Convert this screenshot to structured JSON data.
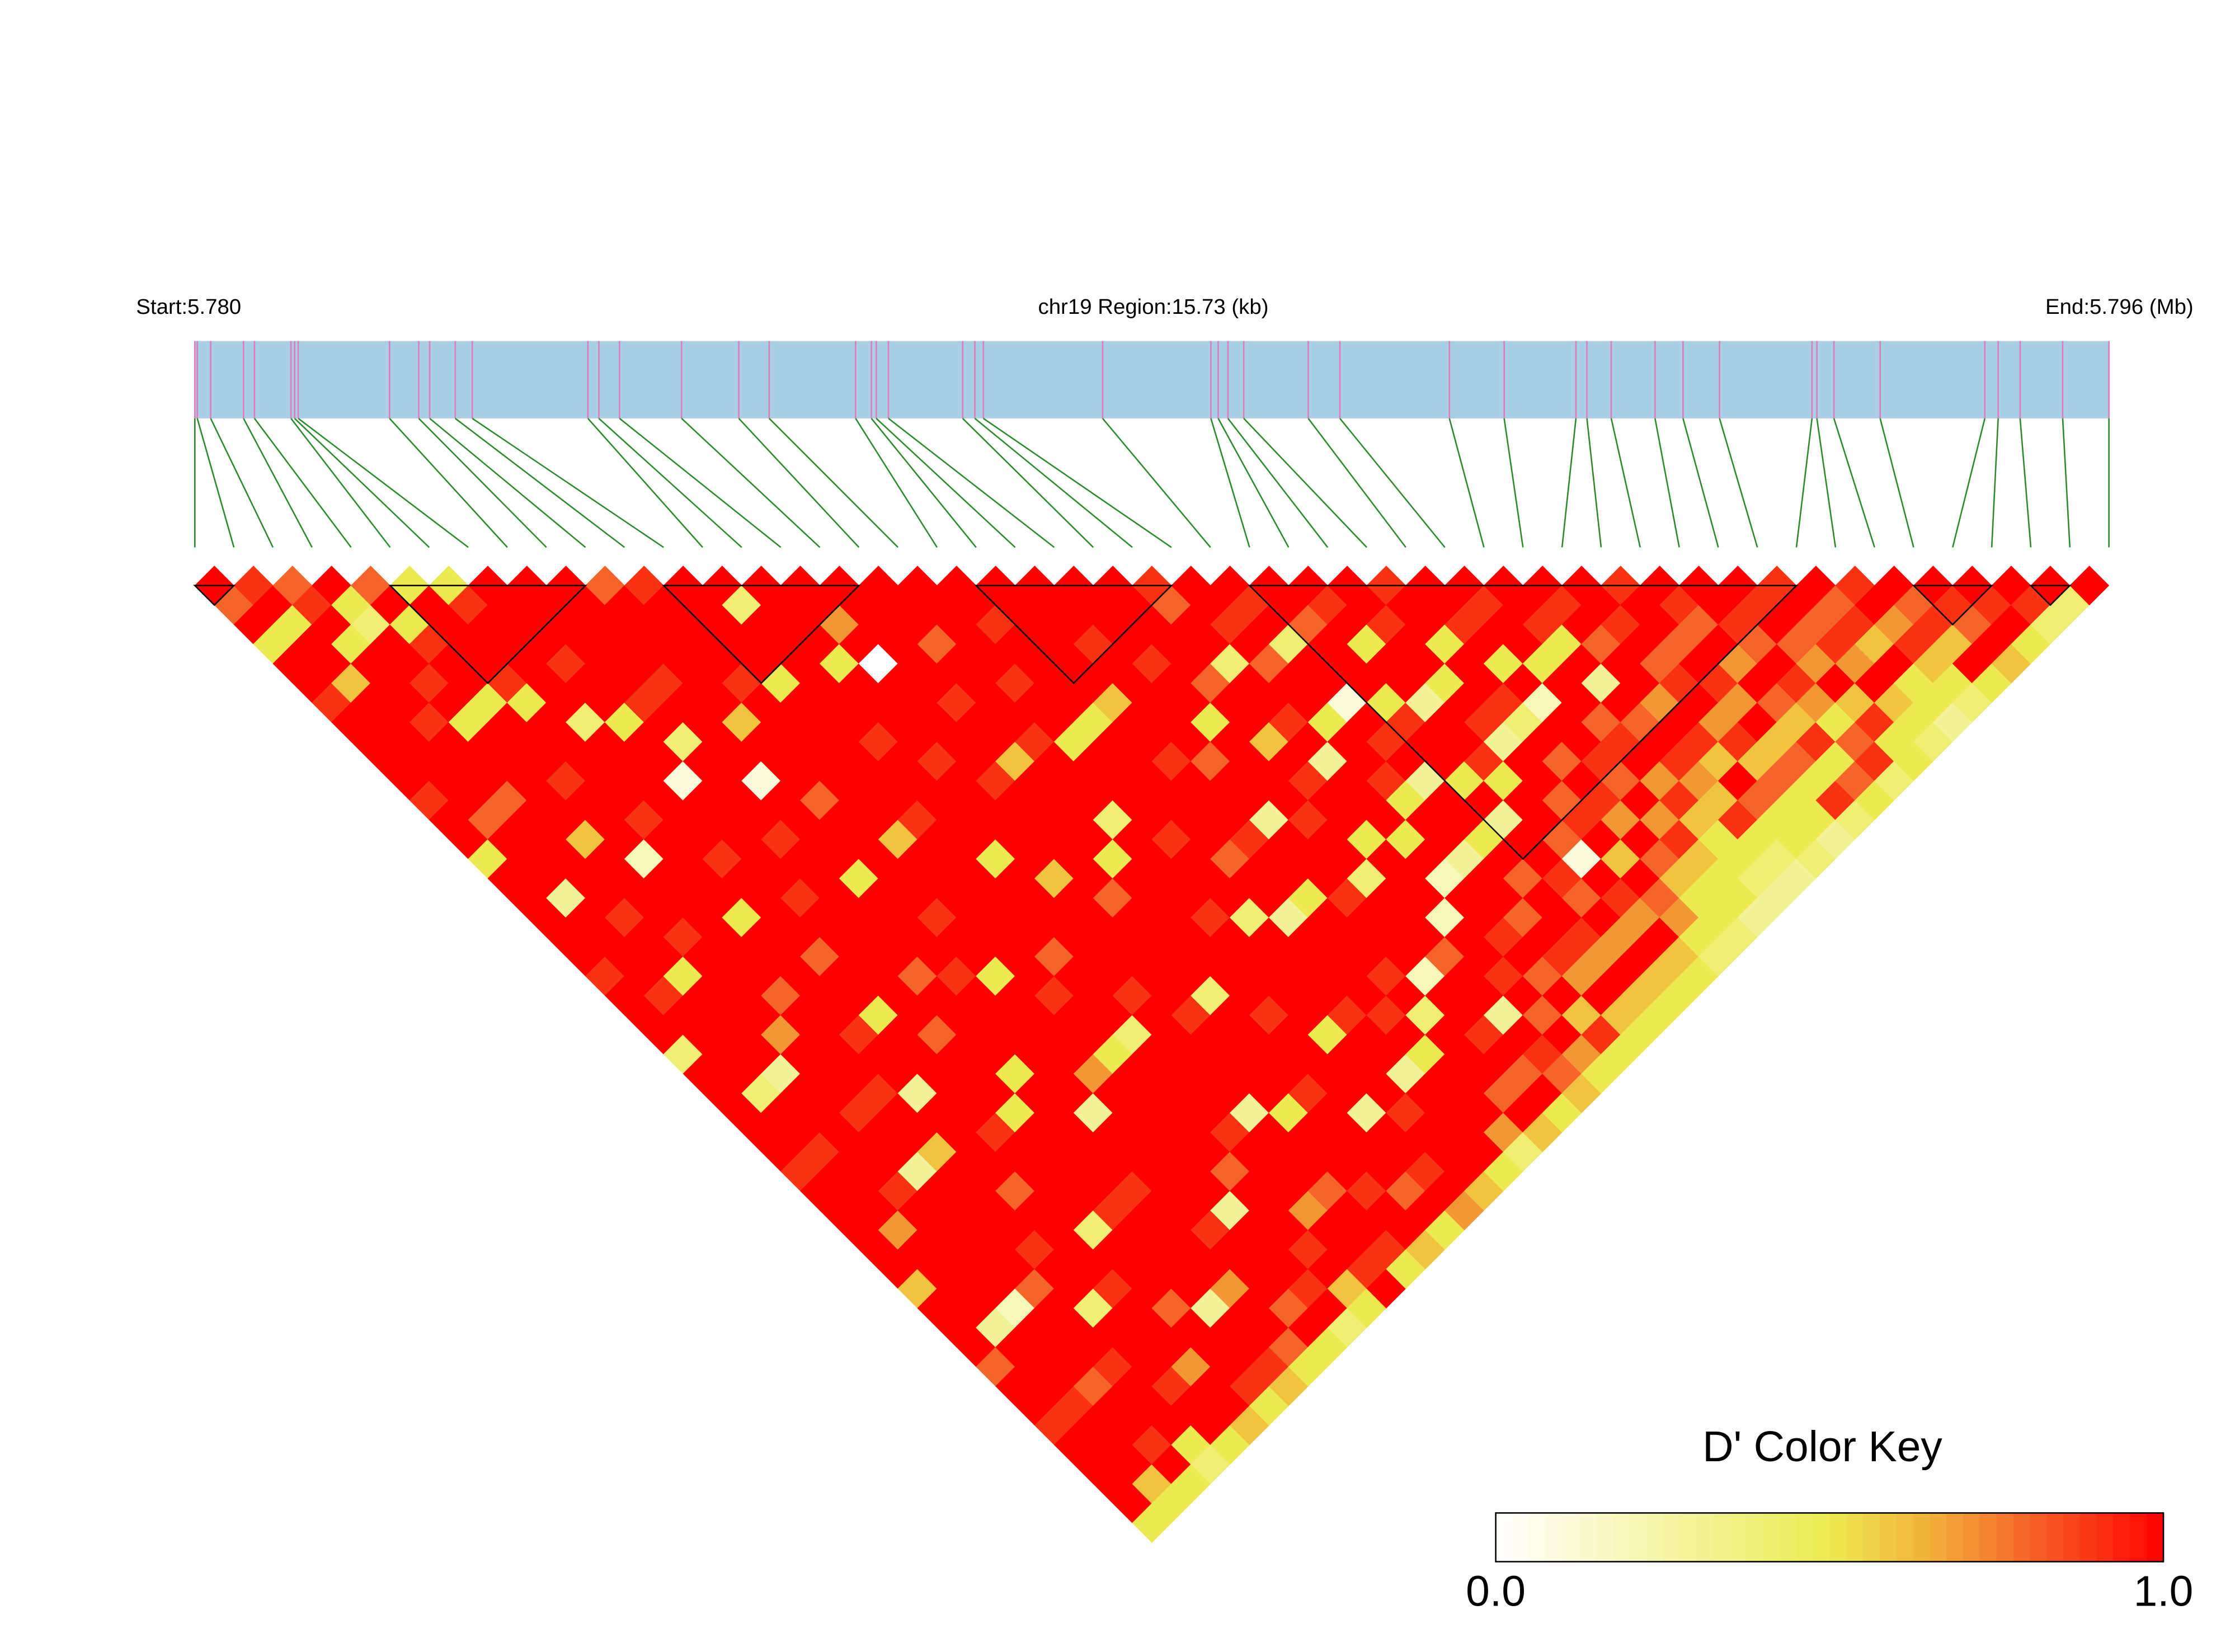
{
  "chart_data": {
    "type": "ld_heatmap",
    "start_label": "Start:5.780",
    "region_label": "chr19 Region:15.73 (kb)",
    "end_label": "End:5.796 (Mb)",
    "key_title": "D' Color Key",
    "key_ticks": [
      {
        "value": 0,
        "label": "0.0"
      },
      {
        "value": 1,
        "label": "1.0"
      }
    ],
    "color_stops": [
      {
        "value": 0,
        "color": "#ffffff"
      },
      {
        "value": 0.5,
        "color": "#ecea50"
      },
      {
        "value": 0.65,
        "color": "#f2b03a"
      },
      {
        "value": 0.8,
        "color": "#f56428"
      },
      {
        "value": 1,
        "color": "#ff0000"
      }
    ],
    "xlim": [
      0,
      15.73
    ],
    "snp_positions": [
      0.0,
      0.02,
      0.13,
      0.4,
      0.49,
      0.79,
      0.82,
      0.85,
      1.6,
      1.84,
      1.93,
      2.14,
      2.28,
      3.23,
      3.32,
      3.49,
      4.0,
      4.47,
      4.72,
      5.43,
      5.56,
      5.6,
      5.7,
      6.31,
      6.41,
      6.48,
      7.46,
      8.35,
      8.41,
      8.49,
      8.62,
      9.15,
      9.41,
      10.31,
      10.76,
      11.35,
      11.44,
      11.64,
      12.0,
      12.23,
      12.53,
      13.29,
      13.33,
      13.47,
      13.85,
      14.71,
      14.82,
      15.0,
      15.35,
      15.73
    ],
    "blocks": [
      [
        0,
        1
      ],
      [
        5,
        10
      ],
      [
        12,
        17
      ],
      [
        20,
        25
      ],
      [
        27,
        41
      ],
      [
        44,
        46
      ],
      [
        47,
        48
      ]
    ],
    "ld": [
      [
        1,
        0.8,
        1,
        0.5,
        1,
        1,
        0.9,
        1,
        1,
        1,
        1,
        0.9,
        1,
        1,
        0.5,
        1,
        1,
        1,
        1,
        1,
        0.9,
        1,
        1,
        1,
        0.4,
        1,
        1,
        1,
        1,
        1,
        0.9,
        1,
        1,
        1,
        1,
        1,
        0.6,
        1,
        1,
        1,
        0.8,
        1,
        1,
        0.9,
        1,
        1,
        1,
        1,
        0.5
      ],
      [
        0.9,
        1,
        0.5,
        1,
        1,
        0.6,
        1,
        1,
        1,
        1,
        1,
        1,
        0.8,
        1,
        1,
        1,
        0.3,
        1,
        1,
        1,
        1,
        0.9,
        1,
        1,
        1,
        1,
        0.4,
        1,
        1,
        0.9,
        1,
        1,
        1,
        0.7,
        1,
        1,
        1,
        1,
        0.3,
        1,
        1,
        1,
        0.9,
        1,
        1,
        1,
        0.6,
        0.5
      ],
      [
        0.8,
        0.9,
        1,
        0.5,
        1,
        1,
        1,
        0.9,
        1,
        1,
        1,
        0.8,
        1,
        1,
        1,
        1,
        1,
        0.9,
        1,
        1,
        0.5,
        1,
        1,
        1,
        1,
        0.3,
        1,
        1,
        1,
        1,
        1,
        0.9,
        1,
        1,
        1,
        1,
        1,
        0.2,
        1,
        1,
        1,
        0.8,
        1,
        1,
        0.9,
        1,
        0.5
      ],
      [
        1,
        0.5,
        0.4,
        1,
        1,
        0.9,
        1,
        0.5,
        1,
        1,
        1,
        1,
        1,
        0.6,
        1,
        1,
        1,
        1,
        0.9,
        1,
        1,
        1,
        1,
        0.7,
        1,
        1,
        1,
        0.9,
        1,
        1,
        0.3,
        1,
        1,
        1,
        1,
        1,
        0.8,
        1,
        1,
        1,
        0.9,
        1,
        1,
        1,
        0.5,
        0.4
      ],
      [
        0.8,
        1,
        0.5,
        0.9,
        1,
        1,
        0.5,
        1,
        1,
        1,
        0.9,
        1,
        1,
        1,
        0.2,
        1,
        1,
        1,
        1,
        1,
        1,
        0.8,
        1,
        1,
        1,
        1,
        0.9,
        1,
        1,
        0.6,
        1,
        1,
        1,
        1,
        0.9,
        1,
        1,
        0.4,
        1,
        1,
        1,
        0.9,
        1,
        1,
        0.5
      ],
      [
        0.5,
        1,
        1,
        1,
        1,
        0.9,
        0.5,
        1,
        1,
        1,
        1,
        1,
        0.9,
        1,
        1,
        1,
        1,
        0.5,
        1,
        1,
        1,
        1,
        1,
        0.9,
        1,
        1,
        0.3,
        1,
        1,
        1,
        1,
        0.8,
        1,
        1,
        1,
        1,
        0.9,
        1,
        1,
        1,
        0.7,
        1,
        1,
        0.6
      ],
      [
        0.5,
        0.9,
        1,
        1,
        1,
        1,
        1,
        0.4,
        1,
        1,
        1,
        1,
        1,
        1,
        0.9,
        1,
        1,
        1,
        1,
        0.8,
        1,
        1,
        0.5,
        1,
        1,
        1,
        1,
        1,
        0.9,
        1,
        1,
        1,
        1,
        0.4,
        1,
        1,
        1,
        0.8,
        1,
        1,
        1,
        0.9,
        0.5
      ],
      [
        1,
        1,
        1,
        1,
        0.9,
        1,
        1,
        0.5,
        1,
        1,
        0.1,
        1,
        1,
        1,
        1,
        1,
        0.9,
        1,
        1,
        1,
        1,
        1,
        1,
        0.8,
        1,
        1,
        1,
        0.5,
        1,
        1,
        1,
        1,
        0.9,
        1,
        1,
        1,
        1,
        0.3,
        1,
        1,
        0.9,
        0.6
      ],
      [
        1,
        1,
        1,
        1,
        1,
        1,
        0.9,
        1,
        0.4,
        1,
        1,
        1,
        1,
        0.9,
        1,
        1,
        1,
        1,
        1,
        1,
        0.8,
        1,
        1,
        1,
        1,
        0.5,
        1,
        1,
        1,
        1,
        1,
        0.9,
        1,
        1,
        1,
        1,
        0.7,
        1,
        1,
        0.8,
        0.5
      ],
      [
        1,
        1,
        1,
        1,
        1,
        0.9,
        1,
        1,
        1,
        1,
        0.1,
        1,
        1,
        1,
        1,
        0.5,
        1,
        1,
        1,
        1,
        0.9,
        1,
        1,
        1,
        1,
        1,
        1,
        0.3,
        1,
        1,
        1,
        1,
        1,
        0.9,
        1,
        1,
        1,
        0.8,
        1,
        0.5
      ],
      [
        0.8,
        1,
        1,
        1,
        1,
        1,
        1,
        0.6,
        1,
        1,
        1,
        0.8,
        1,
        1,
        1,
        1,
        1,
        0.9,
        1,
        1,
        0.5,
        1,
        1,
        1,
        1,
        0.7,
        1,
        1,
        1,
        1,
        1,
        1,
        0.3,
        1,
        1,
        1,
        0.9,
        1,
        0.4
      ],
      [
        0.9,
        1,
        1,
        1,
        1,
        0.9,
        1,
        1,
        1,
        1,
        1,
        1,
        1,
        0.6,
        1,
        1,
        1,
        1,
        1,
        1,
        1,
        0.9,
        1,
        1,
        0.5,
        1,
        1,
        1,
        1,
        1,
        0.8,
        1,
        1,
        1,
        0.9,
        1,
        0.6,
        0.5
      ],
      [
        1,
        1,
        1,
        1,
        1,
        0.5,
        1,
        1,
        1,
        1,
        1,
        1,
        0.9,
        1,
        1,
        1,
        1,
        1,
        1,
        0.8,
        1,
        1,
        1,
        0.4,
        1,
        1,
        1,
        1,
        0.9,
        1,
        1,
        1,
        0.7,
        1,
        1,
        0.9,
        1
      ],
      [
        1,
        0.4,
        1,
        1,
        1,
        1,
        1,
        1,
        0.9,
        1,
        1,
        1,
        1,
        1,
        0.5,
        1,
        1,
        1,
        1,
        1,
        1,
        0.9,
        1,
        1,
        1,
        1,
        1,
        0.3,
        1,
        1,
        1,
        0.8,
        1,
        1,
        0.9,
        0.5
      ],
      [
        1,
        1,
        1,
        1,
        0.5,
        1,
        1,
        1,
        1,
        0.9,
        1,
        1,
        1,
        1,
        1,
        0.6,
        1,
        1,
        1,
        1,
        1,
        1,
        0.9,
        1,
        1,
        1,
        1,
        0.5,
        1,
        1,
        1,
        0.9,
        1,
        1,
        0.6
      ],
      [
        1,
        1,
        0.7,
        1,
        0,
        1,
        1,
        1,
        1,
        1,
        0.9,
        1,
        1,
        1,
        1,
        1,
        0.8,
        1,
        1,
        1,
        1,
        0.4,
        1,
        1,
        1,
        1,
        0.9,
        1,
        1,
        1,
        1,
        0.8,
        1,
        0.5
      ],
      [
        1,
        1,
        1,
        1,
        1,
        1,
        0.9,
        1,
        1,
        0.6,
        1,
        1,
        1,
        1,
        0.5,
        1,
        1,
        1,
        1,
        1,
        1,
        1,
        0.9,
        1,
        1,
        1,
        1,
        0.3,
        1,
        1,
        0.9,
        1,
        0.7
      ],
      [
        1,
        1,
        1,
        0.8,
        1,
        1,
        1,
        1,
        0.9,
        1,
        1,
        1,
        0.4,
        1,
        1,
        1,
        1,
        0.9,
        1,
        1,
        1,
        1,
        1,
        0.5,
        1,
        1,
        1,
        0.9,
        1,
        1,
        1,
        0.6
      ],
      [
        1,
        1,
        1,
        1,
        1,
        0.9,
        1,
        1,
        0.5,
        1,
        1,
        1,
        1,
        0.9,
        1,
        1,
        1,
        0.4,
        1,
        1,
        1,
        1,
        0.9,
        1,
        1,
        0.3,
        1,
        1,
        1,
        1,
        0.5
      ],
      [
        1,
        1,
        0.9,
        1,
        1,
        1,
        1,
        0.5,
        1,
        1,
        1,
        1,
        1,
        1,
        0.8,
        1,
        1,
        0.3,
        1,
        1,
        1,
        1,
        0.9,
        1,
        0.5,
        1,
        1,
        1,
        0.7,
        0.4
      ],
      [
        1,
        1,
        1,
        1,
        1,
        1,
        0.6,
        1,
        1,
        0.9,
        1,
        1,
        1,
        0.9,
        1,
        1,
        0.5,
        1,
        1,
        1,
        0.9,
        1,
        0.4,
        1,
        1,
        1,
        0.8,
        1,
        0.6
      ],
      [
        1,
        1,
        1,
        0.9,
        1,
        1,
        1,
        1,
        1,
        0.8,
        1,
        1,
        0.3,
        1,
        1,
        1,
        0.9,
        1,
        1,
        1,
        0.2,
        1,
        1,
        0.9,
        1,
        0.8,
        1,
        0.5
      ],
      [
        1,
        1,
        1,
        1,
        0.9,
        1,
        1,
        0.5,
        1,
        1,
        1,
        1,
        0.9,
        1,
        1,
        0.4,
        1,
        1,
        1,
        0.8,
        1,
        1,
        0.3,
        1,
        0.9,
        0.8,
        0.6
      ],
      [
        1,
        1,
        1,
        1,
        1,
        0.8,
        1,
        1,
        0.6,
        1,
        0.9,
        1,
        1,
        0.5,
        1,
        1,
        1,
        0.2,
        1,
        1,
        0.9,
        1,
        0.8,
        1,
        0.7,
        0.5
      ],
      [
        0.9,
        0.8,
        1,
        1,
        0.4,
        1,
        1,
        0.9,
        1,
        0.3,
        1,
        1,
        1,
        0.5,
        1,
        0.2,
        1,
        1,
        0.9,
        1,
        0.8,
        1,
        0.6,
        0.9,
        0.5
      ],
      [
        1,
        1,
        0.9,
        1,
        0.8,
        1,
        1,
        0.5,
        1,
        1,
        0.9,
        0.5,
        1,
        1,
        0.3,
        1,
        1,
        0.8,
        1,
        0.9,
        0.7,
        1,
        0.6,
        0.5
      ],
      [
        1,
        0.9,
        1,
        0.4,
        1,
        1,
        0.1,
        1,
        0.9,
        1,
        0.3,
        1,
        1,
        0.5,
        1,
        0.8,
        1,
        1,
        0.9,
        0.7,
        1,
        0.6,
        0.5
      ],
      [
        1,
        1,
        0.8,
        1,
        1,
        1,
        0.5,
        0.9,
        1,
        1,
        0.5,
        1,
        0.3,
        1,
        1,
        0.9,
        0.8,
        1,
        0.7,
        1,
        0.6,
        0.5
      ],
      [
        1,
        0.9,
        1,
        0.5,
        1,
        1,
        0.3,
        1,
        1,
        0.9,
        0.5,
        1,
        1,
        0.8,
        0.1,
        1,
        0.9,
        0.7,
        1,
        0.6,
        0.5
      ],
      [
        1,
        1,
        0.9,
        1,
        1,
        0.5,
        1,
        0.9,
        0.3,
        1,
        1,
        0.8,
        0.9,
        1,
        0.6,
        1,
        0.8,
        0.7,
        0.5,
        0.4
      ],
      [
        0.9,
        1,
        1,
        0.5,
        1,
        1,
        0.9,
        0.4,
        1,
        0.8,
        1,
        0.9,
        0.7,
        1,
        0.8,
        0.6,
        0.5,
        0.5,
        0.4
      ],
      [
        1,
        1,
        0.9,
        1,
        0.5,
        1,
        0.2,
        1,
        1,
        0.9,
        0.8,
        1,
        0.7,
        0.9,
        0.6,
        0.5,
        0.5,
        0.3
      ],
      [
        1,
        0.9,
        1,
        1,
        0.5,
        1,
        1,
        0.8,
        0.9,
        1,
        0.7,
        0.9,
        0.6,
        0.5,
        0.5,
        0.4,
        0.3
      ],
      [
        1,
        1,
        0.9,
        0.5,
        1,
        0.3,
        1,
        0.8,
        1,
        0.9,
        0.7,
        0.6,
        0.9,
        0.5,
        0.4,
        0.3
      ],
      [
        1,
        0.9,
        1,
        0.8,
        1,
        1,
        0.7,
        1,
        0.9,
        0.6,
        1,
        0.8,
        0.5,
        0.5,
        0.4
      ],
      [
        1,
        1,
        0.9,
        1,
        0.8,
        0.9,
        1,
        0.7,
        0.9,
        0.6,
        0.8,
        0.5,
        0.5,
        0.3
      ],
      [
        0.9,
        1,
        1,
        0.8,
        1,
        0.9,
        0.7,
        1,
        0.6,
        0.8,
        0.5,
        0.9,
        0.4
      ],
      [
        1,
        0.9,
        0.8,
        1,
        0.7,
        1,
        0.8,
        0.6,
        0.9,
        0.5,
        0.8,
        0.5
      ],
      [
        1,
        1,
        0.9,
        0.8,
        1,
        0.9,
        0.7,
        0.5,
        0.8,
        0.9,
        0.4
      ],
      [
        1,
        0.9,
        1,
        0.8,
        0.7,
        1,
        0.6,
        0.9,
        0.5,
        0.5
      ],
      [
        0.9,
        1,
        0.8,
        0.9,
        0.7,
        1,
        0.6,
        0.5,
        0.4
      ],
      [
        1,
        0.8,
        0.9,
        0.6,
        1,
        0.5,
        0.5,
        0.3
      ],
      [
        0.9,
        1,
        0.7,
        0.9,
        0.6,
        0.5,
        0.4
      ],
      [
        1,
        0.8,
        0.9,
        0.6,
        1,
        0.5
      ],
      [
        1,
        0.9,
        0.8,
        1,
        0.6
      ],
      [
        1,
        0.9,
        1,
        0.5
      ],
      [
        1,
        0.9,
        0.4
      ],
      [
        1,
        0.4
      ],
      [
        1
      ]
    ]
  }
}
